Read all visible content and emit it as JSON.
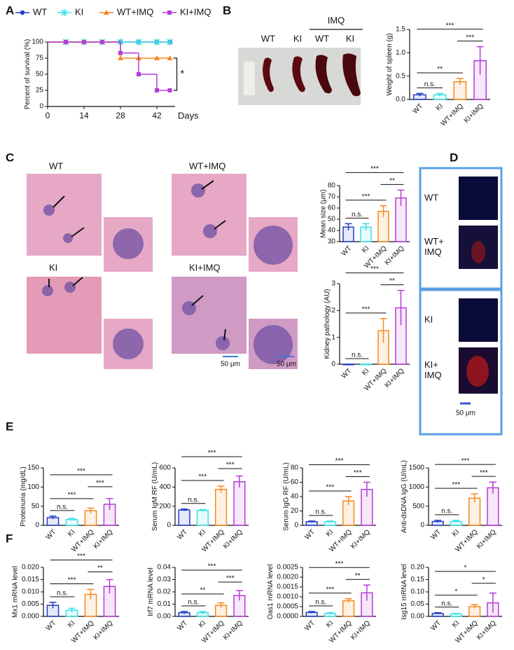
{
  "chart_data": [
    {
      "type": "survival",
      "xlabel": "Days",
      "ylabel": "Percent of survival (%)",
      "x": [
        0,
        7,
        14,
        21,
        28,
        35,
        42,
        47
      ],
      "xlim": [
        0,
        49
      ],
      "xticks": [
        0,
        14,
        28,
        42
      ],
      "ylim": [
        0,
        100
      ],
      "yticks": [
        0,
        25,
        50,
        75,
        100
      ],
      "series": [
        {
          "name": "WT",
          "color": "#1f3fc4",
          "marker": "circle",
          "values": [
            100,
            100,
            100,
            100,
            100,
            100,
            100,
            100
          ]
        },
        {
          "name": "KI",
          "color": "#3de0e6",
          "marker": "x",
          "values": [
            100,
            100,
            100,
            100,
            100,
            100,
            100,
            100
          ]
        },
        {
          "name": "WT+IMQ",
          "color": "#f5891f",
          "marker": "triangle",
          "values": [
            100,
            100,
            100,
            100,
            75,
            75,
            75,
            75
          ]
        },
        {
          "name": "KI+IMQ",
          "color": "#b53cd6",
          "marker": "square",
          "values": [
            100,
            100,
            100,
            100,
            83,
            50,
            25,
            25
          ]
        }
      ],
      "annotation": "*"
    },
    {
      "type": "bar",
      "ylabel": "Weight of spleen (g)",
      "categories": [
        "WT",
        "KI",
        "WT+IMQ",
        "KI+IMQ"
      ],
      "values": [
        0.1,
        0.1,
        0.38,
        0.83
      ],
      "errors": [
        0.03,
        0.03,
        0.07,
        0.3
      ],
      "colors": [
        "#1f3fc4",
        "#3de0e6",
        "#f5891f",
        "#b53cd6"
      ],
      "ylim": [
        0,
        1.5
      ],
      "yticks": [
        {
          "value": 0,
          "label": "0.0"
        },
        0.5,
        {
          "value": 1,
          "label": "1.0"
        },
        1.5
      ],
      "comparisons": [
        {
          "label": "n.s.",
          "groups": [
            "WT",
            "KI"
          ]
        },
        {
          "label": "**",
          "groups": [
            "WT",
            "WT+IMQ"
          ]
        },
        {
          "label": "***",
          "groups": [
            "WT+IMQ",
            "KI+IMQ"
          ]
        },
        {
          "label": "***",
          "groups": [
            "WT",
            "KI+IMQ"
          ]
        }
      ]
    },
    {
      "type": "bar",
      "ylabel": "Mean size (μm)",
      "categories": [
        "WT",
        "KI",
        "WT+IMQ",
        "KI+IMQ"
      ],
      "values": [
        43,
        43,
        57,
        69
      ],
      "errors": [
        3,
        3,
        5,
        7
      ],
      "colors": [
        "#1f3fc4",
        "#3de0e6",
        "#f5891f",
        "#b53cd6"
      ],
      "ylim": [
        30,
        80
      ],
      "yticks": [
        30,
        40,
        50,
        60,
        70,
        80
      ],
      "comparisons": [
        {
          "label": "n.s.",
          "groups": [
            "WT",
            "KI"
          ]
        },
        {
          "label": "***",
          "groups": [
            "WT",
            "WT+IMQ"
          ]
        },
        {
          "label": "**",
          "groups": [
            "WT+IMQ",
            "KI+IMQ"
          ]
        },
        {
          "label": "***",
          "groups": [
            "WT",
            "KI+IMQ"
          ]
        }
      ]
    },
    {
      "type": "bar",
      "ylabel": "Kidney pathology (AU)",
      "categories": [
        "WT",
        "KI",
        "WT+IMQ",
        "KI+IMQ"
      ],
      "values": [
        0,
        0,
        1.25,
        2.1
      ],
      "errors": [
        0,
        0,
        0.45,
        0.65
      ],
      "colors": [
        "#1f3fc4",
        "#3de0e6",
        "#f5891f",
        "#b53cd6"
      ],
      "ylim": [
        0,
        3
      ],
      "yticks": [
        0,
        1,
        2,
        3
      ],
      "comparisons": [
        {
          "label": "n.s.",
          "groups": [
            "WT",
            "KI"
          ]
        },
        {
          "label": "***",
          "groups": [
            "WT",
            "WT+IMQ"
          ]
        },
        {
          "label": "**",
          "groups": [
            "WT+IMQ",
            "KI+IMQ"
          ]
        },
        {
          "label": "***",
          "groups": [
            "WT",
            "KI+IMQ"
          ]
        }
      ]
    },
    {
      "type": "bar",
      "ylabel": "Proteinuria (mg/dL)",
      "categories": [
        "WT",
        "KI",
        "WT+IMQ",
        "KI+IMQ"
      ],
      "values": [
        20,
        15,
        38,
        55
      ],
      "errors": [
        4,
        3,
        7,
        15
      ],
      "colors": [
        "#1f3fc4",
        "#3de0e6",
        "#f5891f",
        "#b53cd6"
      ],
      "ylim": [
        0,
        150
      ],
      "yticks": [
        0,
        50,
        100,
        150
      ],
      "comparisons": [
        {
          "label": "n.s.",
          "groups": [
            "WT",
            "KI"
          ]
        },
        {
          "label": "***",
          "groups": [
            "WT",
            "WT+IMQ"
          ]
        },
        {
          "label": "***",
          "groups": [
            "WT+IMQ",
            "KI+IMQ"
          ]
        },
        {
          "label": "***",
          "groups": [
            "WT",
            "KI+IMQ"
          ]
        }
      ]
    },
    {
      "type": "bar",
      "ylabel": "Serum IgM RF (U/mL)",
      "categories": [
        "WT",
        "KI",
        "WT+IMQ",
        "KI+IMQ"
      ],
      "values": [
        160,
        155,
        375,
        455
      ],
      "errors": [
        10,
        10,
        35,
        60
      ],
      "colors": [
        "#1f3fc4",
        "#3de0e6",
        "#f5891f",
        "#b53cd6"
      ],
      "ylim": [
        0,
        600
      ],
      "yticks": [
        0,
        200,
        400,
        600
      ],
      "comparisons": [
        {
          "label": "n.s.",
          "groups": [
            "WT",
            "KI"
          ]
        },
        {
          "label": "***",
          "groups": [
            "WT",
            "WT+IMQ"
          ]
        },
        {
          "label": "***",
          "groups": [
            "WT+IMQ",
            "KI+IMQ"
          ]
        },
        {
          "label": "***",
          "groups": [
            "WT",
            "KI+IMQ"
          ]
        }
      ]
    },
    {
      "type": "bar",
      "ylabel": "Serum IgG RF (U/mL)",
      "categories": [
        "WT",
        "KI",
        "WT+IMQ",
        "KI+IMQ"
      ],
      "values": [
        5,
        5,
        34,
        50
      ],
      "errors": [
        1,
        1,
        6,
        10
      ],
      "colors": [
        "#1f3fc4",
        "#3de0e6",
        "#f5891f",
        "#b53cd6"
      ],
      "ylim": [
        0,
        80
      ],
      "yticks": [
        0,
        20,
        40,
        60,
        80
      ],
      "comparisons": [
        {
          "label": "n.s.",
          "groups": [
            "WT",
            "KI"
          ]
        },
        {
          "label": "***",
          "groups": [
            "WT",
            "WT+IMQ"
          ]
        },
        {
          "label": "***",
          "groups": [
            "WT+IMQ",
            "KI+IMQ"
          ]
        },
        {
          "label": "***",
          "groups": [
            "WT",
            "KI+IMQ"
          ]
        }
      ]
    },
    {
      "type": "bar",
      "ylabel": "Anti-dsDNA IgG (U/mL)",
      "categories": [
        "WT",
        "KI",
        "WT+IMQ",
        "KI+IMQ"
      ],
      "values": [
        100,
        100,
        710,
        980
      ],
      "errors": [
        30,
        30,
        110,
        150
      ],
      "colors": [
        "#1f3fc4",
        "#3de0e6",
        "#f5891f",
        "#b53cd6"
      ],
      "ylim": [
        0,
        1500
      ],
      "yticks": [
        0,
        500,
        1000,
        1500
      ],
      "comparisons": [
        {
          "label": "n.s.",
          "groups": [
            "WT",
            "KI"
          ]
        },
        {
          "label": "***",
          "groups": [
            "WT",
            "WT+IMQ"
          ]
        },
        {
          "label": "***",
          "groups": [
            "WT+IMQ",
            "KI+IMQ"
          ]
        },
        {
          "label": "***",
          "groups": [
            "WT",
            "KI+IMQ"
          ]
        }
      ]
    },
    {
      "type": "bar",
      "ylabel": "Mx1 mRNA level",
      "categories": [
        "WT",
        "KI",
        "WT+IMQ",
        "KI+IMQ"
      ],
      "values": [
        0.0045,
        0.0025,
        0.009,
        0.0122
      ],
      "errors": [
        0.0012,
        0.0008,
        0.002,
        0.0028
      ],
      "colors": [
        "#1f3fc4",
        "#3de0e6",
        "#f5891f",
        "#b53cd6"
      ],
      "ylim": [
        0,
        0.02
      ],
      "yticks": [
        {
          "value": 0,
          "label": "0.000"
        },
        0.005,
        {
          "value": 0.01,
          "label": "0.010"
        },
        0.015,
        {
          "value": 0.02,
          "label": "0.020"
        }
      ],
      "comparisons": [
        {
          "label": "n.s.",
          "groups": [
            "WT",
            "KI"
          ]
        },
        {
          "label": "***",
          "groups": [
            "WT",
            "WT+IMQ"
          ]
        },
        {
          "label": "**",
          "groups": [
            "WT+IMQ",
            "KI+IMQ"
          ]
        },
        {
          "label": "***",
          "groups": [
            "WT",
            "KI+IMQ"
          ]
        }
      ]
    },
    {
      "type": "bar",
      "ylabel": "Irf7 mRNA level",
      "categories": [
        "WT",
        "KI",
        "WT+IMQ",
        "KI+IMQ"
      ],
      "values": [
        0.003,
        0.003,
        0.009,
        0.017
      ],
      "errors": [
        0.001,
        0.001,
        0.002,
        0.004
      ],
      "colors": [
        "#1f3fc4",
        "#3de0e6",
        "#f5891f",
        "#b53cd6"
      ],
      "ylim": [
        0,
        0.04
      ],
      "yticks": [
        {
          "value": 0,
          "label": "0.00"
        },
        0.01,
        0.02,
        0.03,
        0.04
      ],
      "comparisons": [
        {
          "label": "n.s.",
          "groups": [
            "WT",
            "KI"
          ]
        },
        {
          "label": "**",
          "groups": [
            "WT",
            "WT+IMQ"
          ]
        },
        {
          "label": "***",
          "groups": [
            "WT+IMQ",
            "KI+IMQ"
          ]
        },
        {
          "label": "***",
          "groups": [
            "WT",
            "KI+IMQ"
          ]
        }
      ]
    },
    {
      "type": "bar",
      "ylabel": "Oas1 mRNA level",
      "categories": [
        "WT",
        "KI",
        "WT+IMQ",
        "KI+IMQ"
      ],
      "values": [
        0.0002,
        0.00015,
        0.0008,
        0.0012
      ],
      "errors": [
        5e-05,
        4e-05,
        0.0001,
        0.0004
      ],
      "colors": [
        "#1f3fc4",
        "#3de0e6",
        "#f5891f",
        "#b53cd6"
      ],
      "ylim": [
        0,
        0.0025
      ],
      "yticks": [
        {
          "value": 0,
          "label": "0.0000"
        },
        0.0005,
        {
          "value": 0.001,
          "label": "0.0010"
        },
        0.0015,
        {
          "value": 0.002,
          "label": "0.0020"
        },
        0.0025
      ],
      "comparisons": [
        {
          "label": "n.s.",
          "groups": [
            "WT",
            "KI"
          ]
        },
        {
          "label": "***",
          "groups": [
            "WT",
            "WT+IMQ"
          ]
        },
        {
          "label": "**",
          "groups": [
            "WT+IMQ",
            "KI+IMQ"
          ]
        },
        {
          "label": "***",
          "groups": [
            "WT",
            "KI+IMQ"
          ]
        }
      ]
    },
    {
      "type": "bar",
      "ylabel": "Isg15 mRNA level",
      "categories": [
        "WT",
        "KI",
        "WT+IMQ",
        "KI+IMQ"
      ],
      "values": [
        0.012,
        0.01,
        0.04,
        0.055
      ],
      "errors": [
        0.003,
        0.002,
        0.008,
        0.04
      ],
      "colors": [
        "#1f3fc4",
        "#3de0e6",
        "#f5891f",
        "#b53cd6"
      ],
      "ylim": [
        0,
        0.2
      ],
      "yticks": [
        {
          "value": 0,
          "label": "0.00"
        },
        0.05,
        {
          "value": 0.1,
          "label": "0.10"
        },
        0.15,
        {
          "value": 0.2,
          "label": "0.20"
        }
      ],
      "comparisons": [
        {
          "label": "n.s.",
          "groups": [
            "WT",
            "KI"
          ]
        },
        {
          "label": "*",
          "groups": [
            "WT",
            "WT+IMQ"
          ]
        },
        {
          "label": "*",
          "groups": [
            "WT+IMQ",
            "KI+IMQ"
          ]
        },
        {
          "label": "*",
          "groups": [
            "WT",
            "KI+IMQ"
          ]
        }
      ]
    }
  ],
  "figure": {
    "panel_labels": [
      "A",
      "B",
      "C",
      "D",
      "E",
      "F"
    ],
    "spleen_photo": {
      "group_labels": [
        "WT",
        "KI",
        "WT",
        "KI"
      ],
      "treatment_label": "IMQ"
    },
    "histology": {
      "labels": [
        "WT",
        "WT+IMQ",
        "KI",
        "KI+IMQ"
      ],
      "scale_bars": [
        "50 μm",
        "50 μm"
      ]
    },
    "immunofluorescence": {
      "labels": [
        [
          "WT"
        ],
        [
          "WT+",
          "IMQ"
        ],
        [
          "KI"
        ],
        [
          "KI+",
          "IMQ"
        ]
      ],
      "scale_bar": "50 μm"
    }
  }
}
